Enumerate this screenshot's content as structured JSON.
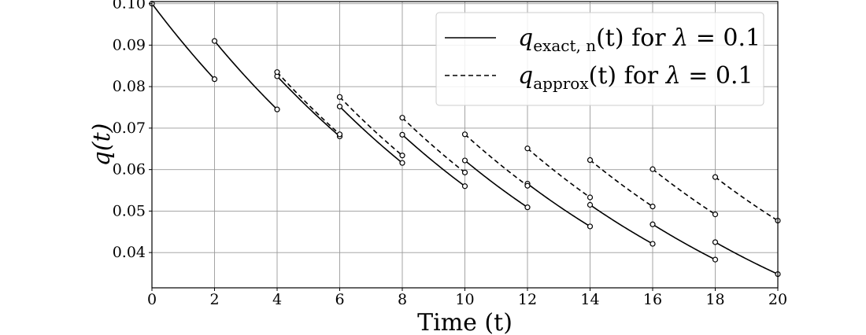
{
  "chart_data": {
    "type": "line",
    "xlabel": "Time (t)",
    "ylabel": "q(t)",
    "xlim": [
      0,
      20
    ],
    "ylim": [
      0.0315,
      0.1005
    ],
    "xticks": [
      0,
      2,
      4,
      6,
      8,
      10,
      12,
      14,
      16,
      18,
      20
    ],
    "yticks": [
      0.04,
      0.05,
      0.06,
      0.07,
      0.08,
      0.09,
      0.1
    ],
    "xtick_labels": [
      "0",
      "2",
      "4",
      "6",
      "8",
      "10",
      "12",
      "14",
      "16",
      "18",
      "20"
    ],
    "ytick_labels": [
      "0.04",
      "0.05",
      "0.06",
      "0.07",
      "0.08",
      "0.09",
      "0.10"
    ],
    "grid": true,
    "legend_position": "top-right",
    "series": [
      {
        "name": "q_exact,n(t) for λ = 0.1",
        "legend_parts": [
          "q",
          "exact, n",
          "(t) for ",
          "λ",
          " = 0.1"
        ],
        "style": "solid",
        "color": "#000000",
        "segments": [
          {
            "t0": 0,
            "t1": 2,
            "start": 0.1,
            "end": 0.0818
          },
          {
            "t0": 2,
            "t1": 4,
            "start": 0.091,
            "end": 0.0745
          },
          {
            "t0": 4,
            "t1": 6,
            "start": 0.0825,
            "end": 0.068
          },
          {
            "t0": 6,
            "t1": 8,
            "start": 0.0752,
            "end": 0.0616
          },
          {
            "t0": 8,
            "t1": 10,
            "start": 0.0684,
            "end": 0.056
          },
          {
            "t0": 10,
            "t1": 12,
            "start": 0.0622,
            "end": 0.0509
          },
          {
            "t0": 12,
            "t1": 14,
            "start": 0.0566,
            "end": 0.0463
          },
          {
            "t0": 14,
            "t1": 16,
            "start": 0.0515,
            "end": 0.0421
          },
          {
            "t0": 16,
            "t1": 18,
            "start": 0.0468,
            "end": 0.0383
          },
          {
            "t0": 18,
            "t1": 20,
            "start": 0.0425,
            "end": 0.0348
          }
        ]
      },
      {
        "name": "q_approx(t) for λ = 0.1",
        "legend_parts": [
          "q",
          "approx",
          "(t) for ",
          "λ",
          " = 0.1"
        ],
        "style": "dashed",
        "color": "#000000",
        "segments": [
          {
            "t0": 4,
            "t1": 6,
            "start": 0.0835,
            "end": 0.0685
          },
          {
            "t0": 6,
            "t1": 8,
            "start": 0.0775,
            "end": 0.0634
          },
          {
            "t0": 8,
            "t1": 10,
            "start": 0.0725,
            "end": 0.0593
          },
          {
            "t0": 10,
            "t1": 12,
            "start": 0.0685,
            "end": 0.0561
          },
          {
            "t0": 12,
            "t1": 14,
            "start": 0.0651,
            "end": 0.0533
          },
          {
            "t0": 14,
            "t1": 16,
            "start": 0.0623,
            "end": 0.0511
          },
          {
            "t0": 16,
            "t1": 18,
            "start": 0.0601,
            "end": 0.0492
          },
          {
            "t0": 18,
            "t1": 20,
            "start": 0.0582,
            "end": 0.0477
          }
        ]
      }
    ]
  }
}
